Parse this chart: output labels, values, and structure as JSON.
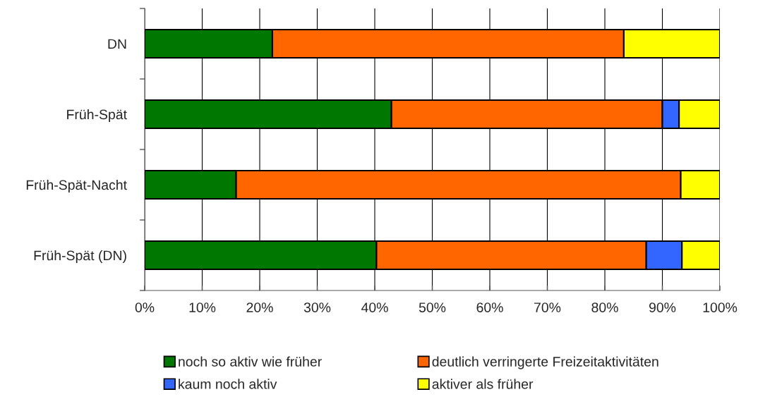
{
  "chart_data": {
    "type": "bar",
    "orientation": "horizontal",
    "stacked": true,
    "categories": [
      "DN",
      "Früh-Spät",
      "Früh-Spät-Nacht",
      "Früh-Spät (DN)"
    ],
    "series": [
      {
        "name": "noch so aktiv wie früher",
        "color": "#007800",
        "values": [
          22.2,
          42.9,
          15.9,
          40.3
        ]
      },
      {
        "name": "deutlich verringerte Freizeitaktivitäten",
        "color": "#ff6600",
        "values": [
          61.1,
          47.1,
          77.3,
          46.9
        ]
      },
      {
        "name": "kaum noch aktiv",
        "color": "#3366ff",
        "values": [
          null,
          2.9,
          null,
          6.2
        ]
      },
      {
        "name": "aktiver als früher",
        "color": "#ffff00",
        "values": [
          16.7,
          7.1,
          6.8,
          6.6
        ]
      }
    ],
    "xlim": [
      0,
      100
    ],
    "xticks": [
      {
        "value": 0,
        "label": "0%"
      },
      {
        "value": 10,
        "label": "10%"
      },
      {
        "value": 20,
        "label": "20%"
      },
      {
        "value": 30,
        "label": "30%"
      },
      {
        "value": 40,
        "label": "40%"
      },
      {
        "value": 50,
        "label": "50%"
      },
      {
        "value": 60,
        "label": "60%"
      },
      {
        "value": 70,
        "label": "70%"
      },
      {
        "value": 80,
        "label": "80%"
      },
      {
        "value": 90,
        "label": "90%"
      },
      {
        "value": 100,
        "label": "100%"
      }
    ],
    "grid": "x",
    "legend": "bottom"
  }
}
